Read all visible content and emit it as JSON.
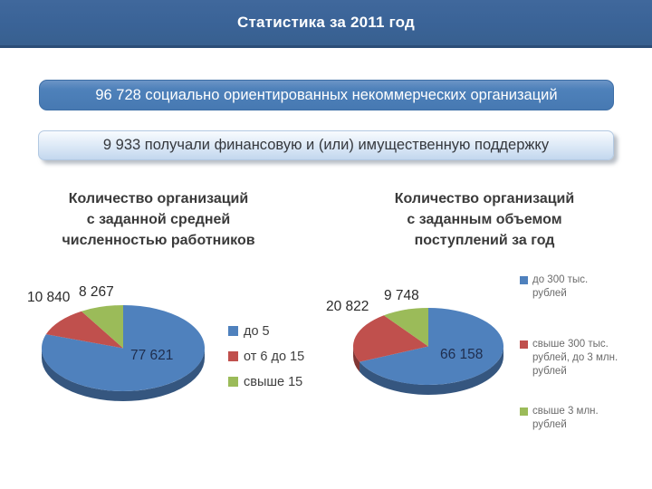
{
  "title_bar": {
    "title": "Статистика за 2011 год"
  },
  "banners": {
    "primary": "96 728 социально ориентированных некоммерческих организаций",
    "secondary": "9 933 получали финансовую и (или) имущественную поддержку"
  },
  "colors": {
    "titlebar_blue": "#3a6397",
    "banner_blue": "#4e81ba",
    "pie_blue": "#4f81bd",
    "pie_red": "#c0504d",
    "pie_green": "#9bbb59"
  },
  "chart_data": [
    {
      "type": "pie",
      "title": "Количество организаций\nс заданной средней\nчисленностью работников",
      "labels": [
        "до 5",
        "от 6 до 15",
        "свыше 15"
      ],
      "values": [
        77621,
        10840,
        8267
      ],
      "value_labels": [
        "77 621",
        "10 840",
        "8 267"
      ],
      "colors": [
        "#4f81bd",
        "#c0504d",
        "#9bbb59"
      ],
      "total": 96728,
      "style": "3d",
      "legend_position": "right"
    },
    {
      "type": "pie",
      "title": "Количество организаций\nс заданным объемом\nпоступлений за год",
      "labels": [
        "до 300 тыс. рублей",
        "свыше 300 тыс. рублей, до 3 млн. рублей",
        "свыше 3 млн. рублей"
      ],
      "values": [
        66158,
        20822,
        9748
      ],
      "value_labels": [
        "66 158",
        "20 822",
        "9 748"
      ],
      "colors": [
        "#4f81bd",
        "#c0504d",
        "#9bbb59"
      ],
      "total": 96728,
      "style": "3d",
      "legend_position": "right"
    }
  ]
}
